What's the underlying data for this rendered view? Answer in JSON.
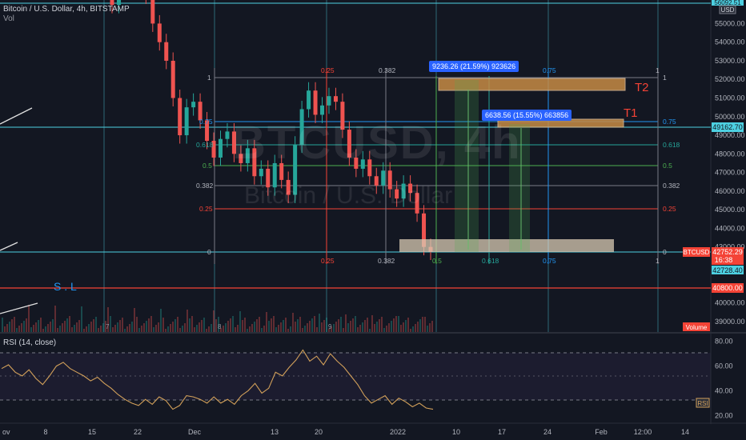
{
  "header": {
    "symbol_line": "Bitcoin / U.S. Dollar, 4h, BITSTAMP",
    "volume_label": "Vol"
  },
  "watermark": {
    "ticker": "BTCUSD, 4h",
    "name": "Bitcoin / U.S. Dollar"
  },
  "colors": {
    "background": "#131722",
    "up": "#26a69a",
    "down": "#ef5350",
    "fib_blue": "#2196f3",
    "fib_red": "#f44336",
    "fib_teal": "#26a69a",
    "target_box": "#c68b45",
    "rsi_line": "#d2a05a"
  },
  "price_axis": {
    "ticks": [
      "55000.00",
      "54000.00",
      "53000.00",
      "52000.00",
      "51000.00",
      "50000.00",
      "49000.00",
      "48000.00",
      "47000.00",
      "46000.00",
      "45000.00",
      "44000.00",
      "43000.00",
      "40000.00",
      "39000.00"
    ],
    "top_label": "56092.51",
    "currency": "USD",
    "label_49162": "49162.70",
    "btcusd_badge": "BTCUSD",
    "last_price": "42752.29",
    "countdown": "16:38",
    "label_42728": "42728.40",
    "label_40800": "40800.00",
    "volume_badge": "Volume"
  },
  "rsi_axis": {
    "ticks": [
      "80.00",
      "60.00",
      "40.00",
      "20.00"
    ],
    "badge": "RSI",
    "title": "RSI (14, close)"
  },
  "time_axis": [
    "ov",
    "8",
    "15",
    "22",
    "Dec",
    "13",
    "20",
    "2022",
    "10",
    "17",
    "24",
    "Feb",
    "12:00",
    "14"
  ],
  "fib_left": {
    "levels": [
      "1",
      "0.75",
      "0.618",
      "0.5",
      "0.382",
      "0.25",
      "0"
    ]
  },
  "fib_right": {
    "levels": [
      "1",
      "0.75",
      "0.618",
      "0.5",
      "0.382",
      "0.25",
      "0"
    ]
  },
  "fib_vertical": {
    "top_labels": [
      "0.25",
      "0.382",
      "0.75",
      "1"
    ],
    "bottom_labels": [
      "0.25",
      "0.382",
      "0.5",
      "0.618",
      "0.75",
      "1"
    ]
  },
  "annotations": {
    "t2": "T2",
    "t1": "T1",
    "sl": "S . L",
    "measure_t2": "9236.26 (21.59%) 923626",
    "measure_t1": "6638.56 (15.55%) 663856"
  },
  "period_marks": [
    "7",
    "8",
    "9"
  ],
  "chart_data": {
    "type": "line",
    "title": "Bitcoin / U.S. Dollar, 4h, BITSTAMP",
    "x_ticks": [
      "8",
      "15",
      "22",
      "Dec",
      "13",
      "20",
      "2022",
      "10",
      "17",
      "24",
      "Feb"
    ],
    "price_axis_range": [
      38500,
      56300
    ],
    "price_series_close": [
      56000,
      57100,
      58000,
      57500,
      57000,
      56500,
      55000,
      54000,
      53000,
      51000,
      49000,
      50500,
      50800,
      49800,
      48700,
      47800,
      48800,
      49200,
      48000,
      47500,
      48300,
      46800,
      47200,
      46200,
      47500,
      46600,
      45800,
      48500,
      50400,
      51400,
      50100,
      50600,
      51100,
      50800,
      49300,
      47800,
      47200,
      47700,
      46800,
      46300,
      47100,
      46100,
      45600,
      46400,
      45900,
      44800,
      43000,
      42750
    ],
    "fib_retracement": {
      "levels": [
        0,
        0.25,
        0.382,
        0.5,
        0.618,
        0.75,
        1
      ],
      "prices": [
        42728.4,
        45000,
        46250,
        47300,
        48400,
        49162.7,
        52000
      ]
    },
    "targets": [
      {
        "name": "T2",
        "change": "9236.26 (21.59%)"
      },
      {
        "name": "T1",
        "change": "6638.56 (15.55%)"
      }
    ],
    "stop_loss": 40800,
    "last_price": 42752.29,
    "rsi": {
      "period": 14,
      "range": [
        15,
        85
      ],
      "levels": [
        70,
        30
      ],
      "values": [
        58,
        61,
        55,
        52,
        57,
        50,
        45,
        52,
        60,
        63,
        58,
        55,
        52,
        48,
        51,
        46,
        42,
        37,
        33,
        30,
        28,
        33,
        29,
        35,
        32,
        25,
        28,
        36,
        35,
        33,
        30,
        35,
        30,
        33,
        29,
        36,
        40,
        46,
        38,
        42,
        55,
        52,
        59,
        65,
        73,
        64,
        68,
        61,
        70,
        64,
        59,
        52,
        45,
        36,
        30,
        33,
        36,
        29,
        34,
        31,
        27,
        30,
        26,
        25
      ]
    }
  }
}
